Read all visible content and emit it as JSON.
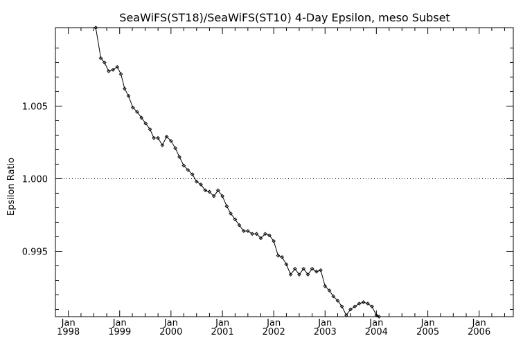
{
  "chart_data": {
    "type": "line",
    "title": "SeaWiFS(ST18)/SeaWiFS(ST10) 4-Day Epsilon, meso Subset",
    "xlabel": "",
    "ylabel": "Epsilon Ratio",
    "xlim": [
      "1997-10-01",
      "2006-09-01"
    ],
    "ylim": [
      0.9905,
      1.0104
    ],
    "x_ticks": [
      {
        "date": "1998-01-01",
        "month": "Jan",
        "year": "1998"
      },
      {
        "date": "1999-01-01",
        "month": "Jan",
        "year": "1999"
      },
      {
        "date": "2000-01-01",
        "month": "Jan",
        "year": "2000"
      },
      {
        "date": "2001-01-01",
        "month": "Jan",
        "year": "2001"
      },
      {
        "date": "2002-01-01",
        "month": "Jan",
        "year": "2002"
      },
      {
        "date": "2003-01-01",
        "month": "Jan",
        "year": "2003"
      },
      {
        "date": "2004-01-01",
        "month": "Jan",
        "year": "2004"
      },
      {
        "date": "2005-01-01",
        "month": "Jan",
        "year": "2005"
      },
      {
        "date": "2006-01-01",
        "month": "Jan",
        "year": "2006"
      }
    ],
    "y_ticks": [
      {
        "value": 0.995,
        "label": "0.995"
      },
      {
        "value": 1.0,
        "label": "1.000"
      },
      {
        "value": 1.005,
        "label": "1.005"
      }
    ],
    "reference_line": {
      "value": 1.0,
      "style": "dotted"
    },
    "grid": false,
    "series": [
      {
        "marker": "diamond",
        "points": [
          [
            "1998-07-15",
            1.0104
          ],
          [
            "1998-08-20",
            1.0083
          ],
          [
            "1998-09-15",
            1.008
          ],
          [
            "1998-10-15",
            1.0074
          ],
          [
            "1998-11-15",
            1.0075
          ],
          [
            "1998-12-15",
            1.0077
          ],
          [
            "1999-01-10",
            1.0072
          ],
          [
            "1999-02-05",
            1.0062
          ],
          [
            "1999-03-05",
            1.0057
          ],
          [
            "1999-04-05",
            1.0049
          ],
          [
            "1999-05-05",
            1.0046
          ],
          [
            "1999-06-05",
            1.0042
          ],
          [
            "1999-07-05",
            1.0038
          ],
          [
            "1999-08-05",
            1.0034
          ],
          [
            "1999-09-01",
            1.0028
          ],
          [
            "1999-10-01",
            1.0028
          ],
          [
            "1999-11-01",
            1.0023
          ],
          [
            "1999-12-01",
            1.0029
          ],
          [
            "2000-01-01",
            1.0026
          ],
          [
            "2000-02-01",
            1.0021
          ],
          [
            "2000-03-01",
            1.0015
          ],
          [
            "2000-04-01",
            1.0009
          ],
          [
            "2000-05-01",
            1.0006
          ],
          [
            "2000-06-01",
            1.0003
          ],
          [
            "2000-07-01",
            0.9998
          ],
          [
            "2000-08-01",
            0.9996
          ],
          [
            "2000-09-01",
            0.9992
          ],
          [
            "2000-10-01",
            0.9991
          ],
          [
            "2000-11-01",
            0.9988
          ],
          [
            "2000-12-01",
            0.9992
          ],
          [
            "2001-01-01",
            0.9988
          ],
          [
            "2001-02-01",
            0.9981
          ],
          [
            "2001-03-01",
            0.9976
          ],
          [
            "2001-04-01",
            0.9972
          ],
          [
            "2001-05-01",
            0.9968
          ],
          [
            "2001-06-01",
            0.9964
          ],
          [
            "2001-07-01",
            0.9964
          ],
          [
            "2001-08-01",
            0.9962
          ],
          [
            "2001-09-01",
            0.9962
          ],
          [
            "2001-10-01",
            0.9959
          ],
          [
            "2001-11-01",
            0.9962
          ],
          [
            "2001-12-01",
            0.9961
          ],
          [
            "2002-01-01",
            0.9957
          ],
          [
            "2002-02-01",
            0.9947
          ],
          [
            "2002-03-01",
            0.9946
          ],
          [
            "2002-04-01",
            0.9941
          ],
          [
            "2002-05-01",
            0.9934
          ],
          [
            "2002-06-01",
            0.9938
          ],
          [
            "2002-07-01",
            0.9934
          ],
          [
            "2002-08-01",
            0.9938
          ],
          [
            "2002-09-01",
            0.9934
          ],
          [
            "2002-10-01",
            0.9938
          ],
          [
            "2002-11-01",
            0.9936
          ],
          [
            "2002-12-01",
            0.9937
          ],
          [
            "2003-01-01",
            0.9926
          ],
          [
            "2003-02-01",
            0.9923
          ],
          [
            "2003-03-01",
            0.9919
          ],
          [
            "2003-04-01",
            0.9916
          ],
          [
            "2003-05-01",
            0.9912
          ],
          [
            "2003-06-01",
            0.9906
          ],
          [
            "2003-07-01",
            0.991
          ],
          [
            "2003-08-01",
            0.9912
          ],
          [
            "2003-09-01",
            0.9914
          ],
          [
            "2003-10-01",
            0.9915
          ],
          [
            "2003-11-01",
            0.9914
          ],
          [
            "2003-12-01",
            0.9912
          ],
          [
            "2004-01-01",
            0.9906
          ],
          [
            "2004-01-20",
            0.9905
          ]
        ]
      }
    ]
  }
}
